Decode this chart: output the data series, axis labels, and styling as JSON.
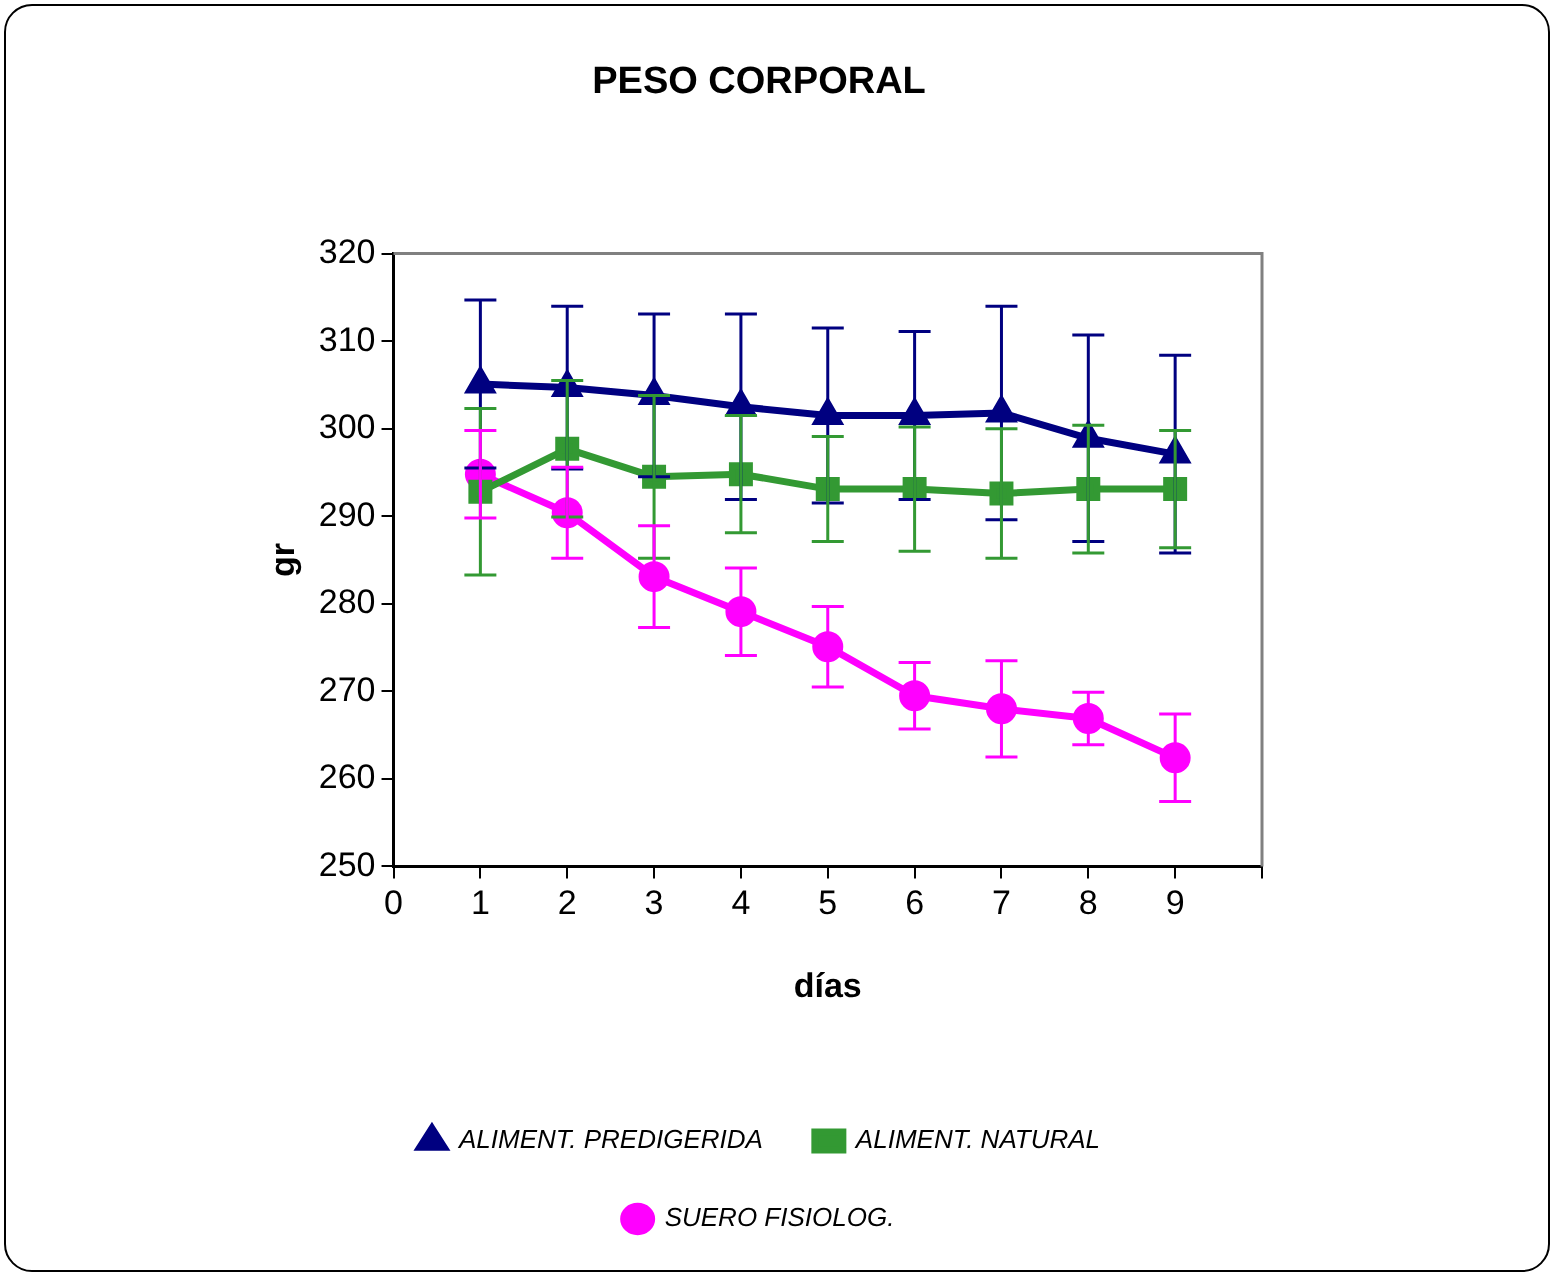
{
  "chart_data": {
    "type": "line",
    "title": "PESO CORPORAL",
    "xlabel": "días",
    "ylabel": "gr",
    "x": [
      1,
      2,
      3,
      4,
      5,
      6,
      7,
      8,
      9
    ],
    "xlim": [
      0,
      10
    ],
    "xticks": [
      0,
      1,
      2,
      3,
      4,
      5,
      6,
      7,
      8,
      9,
      {
        "value": 10,
        "label": null
      }
    ],
    "ylim": [
      250,
      320
    ],
    "yticks": [
      250,
      260,
      270,
      280,
      290,
      300,
      310,
      320
    ],
    "grid": false,
    "legend": "bottom",
    "series": [
      {
        "name": "ALIMENT. PREDIGERIDA",
        "color": "#000080",
        "marker": "triangle",
        "values": [
          305.1,
          304.7,
          303.8,
          302.5,
          301.5,
          301.5,
          301.8,
          298.9,
          297.1
        ],
        "errors": [
          9.6,
          9.3,
          9.3,
          10.6,
          10,
          9.6,
          12.2,
          11.8,
          11.3
        ]
      },
      {
        "name": "ALIMENT. NATURAL",
        "color": "#339933",
        "marker": "square",
        "values": [
          292.8,
          297.7,
          294.5,
          294.8,
          293.1,
          293.1,
          292.6,
          293.1,
          293.1
        ],
        "errors": [
          9.5,
          7.8,
          9.3,
          6.7,
          6,
          7.1,
          7.4,
          7.3,
          6.7
        ]
      },
      {
        "name": "SUERO FISIOLOG.",
        "color": "#ff00ff",
        "marker": "circle",
        "values": [
          294.8,
          290.4,
          283.1,
          279.1,
          275.1,
          269.5,
          268.0,
          266.9,
          262.4
        ],
        "errors": [
          5,
          5.2,
          5.8,
          5,
          4.6,
          3.8,
          5.5,
          3,
          5
        ]
      }
    ]
  }
}
